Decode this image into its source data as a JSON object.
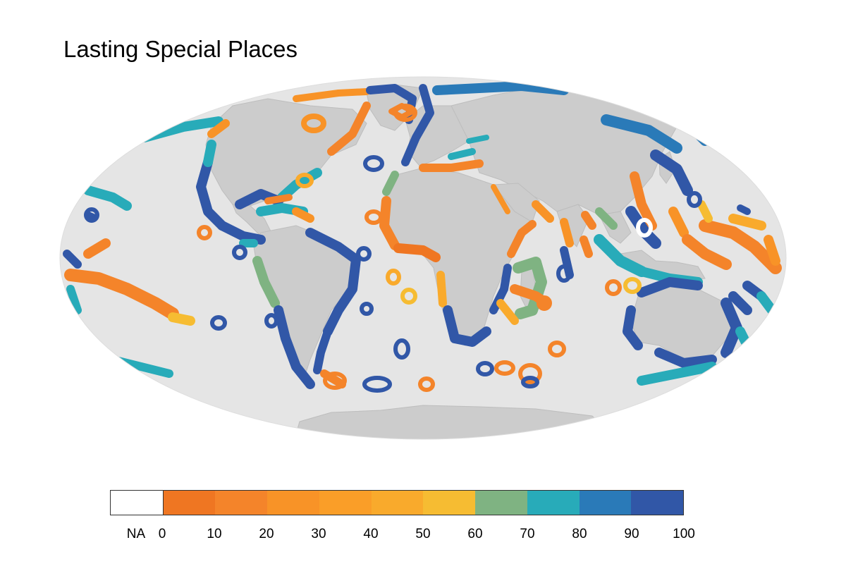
{
  "title": "Lasting Special Places",
  "map": {
    "projection": "mollweide",
    "ocean_color": "#e5e5e5",
    "land_color": "#cccccc",
    "no_data_color": "#ffffff"
  },
  "legend": {
    "na_label": "NA",
    "na_color": "#ffffff",
    "bins": [
      {
        "color": "#ef7622"
      },
      {
        "color": "#f4842a"
      },
      {
        "color": "#f89327"
      },
      {
        "color": "#fa9e28"
      },
      {
        "color": "#f9aa2c"
      },
      {
        "color": "#f6bc32"
      },
      {
        "color": "#7fb382"
      },
      {
        "color": "#28abb9"
      },
      {
        "color": "#2a7ab8"
      },
      {
        "color": "#3157a7"
      }
    ],
    "tick_labels": [
      "0",
      "10",
      "20",
      "30",
      "40",
      "50",
      "60",
      "70",
      "80",
      "90",
      "100"
    ]
  }
}
